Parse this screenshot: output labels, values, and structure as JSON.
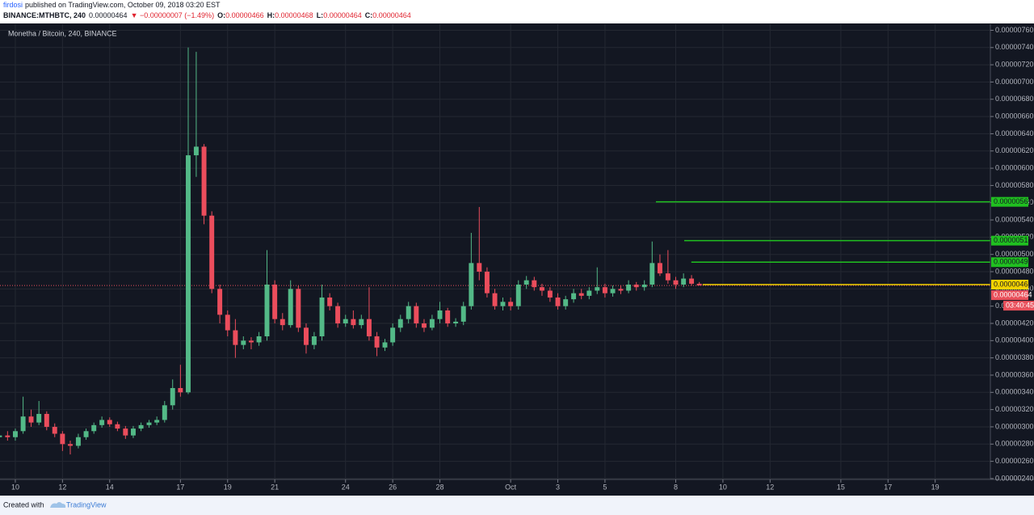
{
  "header": {
    "author": "firdosi",
    "published": "published on TradingView.com, October 09, 2018 03:20 EST",
    "symbol": "BINANCE:MTHBTC, 240",
    "price": "0.00000464",
    "change": "▼ −0.00000007 (−1.49%)",
    "ohlc": [
      {
        "label": "O:",
        "value": "0.00000466"
      },
      {
        "label": "H:",
        "value": "0.00000468"
      },
      {
        "label": "L:",
        "value": "0.00000464"
      },
      {
        "label": "C:",
        "value": "0.00000464"
      }
    ]
  },
  "footer": {
    "created": "Created with",
    "brand": "TradingView"
  },
  "chart_data": {
    "type": "candlestick",
    "title": "Monetha / Bitcoin, 240, BINANCE",
    "up_color": "#53b987",
    "down_color": "#eb4d5c",
    "grid": true,
    "xlim": [
      9.35,
      51.34
    ],
    "ylim": [
      2.39e-06,
      7.67e-06
    ],
    "xticks": [
      10,
      12,
      14,
      17,
      19,
      21,
      24,
      26,
      28,
      {
        "value": 31,
        "label": "Oct"
      },
      {
        "value": 33,
        "label": "3"
      },
      {
        "value": 35,
        "label": "5"
      },
      {
        "value": 38,
        "label": "8"
      },
      {
        "value": 40,
        "label": "10"
      },
      {
        "value": 42,
        "label": "12"
      },
      {
        "value": 45,
        "label": "15"
      },
      {
        "value": 47,
        "label": "17"
      },
      {
        "value": 49,
        "label": "19"
      }
    ],
    "yticks": [
      {
        "value": 2.4e-06,
        "label": "0.00000240"
      },
      {
        "value": 2.6e-06,
        "label": "0.00000260"
      },
      {
        "value": 2.8e-06,
        "label": "0.00000280"
      },
      {
        "value": 3e-06,
        "label": "0.00000300"
      },
      {
        "value": 3.2e-06,
        "label": "0.00000320"
      },
      {
        "value": 3.4e-06,
        "label": "0.00000340"
      },
      {
        "value": 3.6e-06,
        "label": "0.00000360"
      },
      {
        "value": 3.8e-06,
        "label": "0.00000380"
      },
      {
        "value": 4e-06,
        "label": "0.00000400"
      },
      {
        "value": 4.2e-06,
        "label": "0.00000420"
      },
      {
        "value": 4.4e-06,
        "label": "0.00000440"
      },
      {
        "value": 4.6e-06,
        "label": "0.00000460"
      },
      {
        "value": 4.8e-06,
        "label": "0.00000480"
      },
      {
        "value": 5e-06,
        "label": "0.00000500"
      },
      {
        "value": 5.2e-06,
        "label": "0.00000520"
      },
      {
        "value": 5.4e-06,
        "label": "0.00000540"
      },
      {
        "value": 5.6e-06,
        "label": "0.00000560"
      },
      {
        "value": 5.8e-06,
        "label": "0.00000580"
      },
      {
        "value": 6e-06,
        "label": "0.00000600"
      },
      {
        "value": 6.2e-06,
        "label": "0.00000620"
      },
      {
        "value": 6.4e-06,
        "label": "0.00000640"
      },
      {
        "value": 6.6e-06,
        "label": "0.00000660"
      },
      {
        "value": 6.8e-06,
        "label": "0.00000680"
      },
      {
        "value": 7e-06,
        "label": "0.00000700"
      },
      {
        "value": 7.2e-06,
        "label": "0.00000720"
      },
      {
        "value": 7.4e-06,
        "label": "0.00000740"
      },
      {
        "value": 7.6e-06,
        "label": "0.00000760"
      }
    ],
    "x": [
      9.33,
      9.67,
      10,
      10.33,
      10.67,
      11,
      11.33,
      11.67,
      12,
      12.33,
      12.67,
      13,
      13.33,
      13.67,
      14,
      14.33,
      14.67,
      15,
      15.33,
      15.67,
      16,
      16.33,
      16.67,
      17,
      17.33,
      17.67,
      18,
      18.33,
      18.67,
      19,
      19.33,
      19.67,
      20,
      20.33,
      20.67,
      21,
      21.33,
      21.67,
      22,
      22.33,
      22.67,
      23,
      23.33,
      23.67,
      24,
      24.33,
      24.67,
      25,
      25.33,
      25.67,
      26,
      26.33,
      26.67,
      27,
      27.33,
      27.67,
      28,
      28.33,
      28.67,
      29,
      29.33,
      29.67,
      30,
      30.33,
      30.67,
      31,
      31.33,
      31.67,
      32,
      32.33,
      32.67,
      33,
      33.33,
      33.67,
      34,
      34.33,
      34.67,
      35,
      35.33,
      35.67,
      36,
      36.33,
      36.67,
      37,
      37.33,
      37.67,
      38,
      38.33,
      38.67,
      39
    ],
    "open": [
      2.88e-06,
      2.9e-06,
      2.88e-06,
      2.95e-06,
      3.12e-06,
      3.05e-06,
      3.15e-06,
      3e-06,
      2.92e-06,
      2.8e-06,
      2.78e-06,
      2.88e-06,
      2.95e-06,
      3.02e-06,
      3.08e-06,
      3.03e-06,
      2.98e-06,
      2.9e-06,
      2.98e-06,
      3.02e-06,
      3.05e-06,
      3.08e-06,
      3.25e-06,
      3.45e-06,
      3.4e-06,
      6.15e-06,
      6.25e-06,
      5.45e-06,
      4.6e-06,
      4.3e-06,
      4.12e-06,
      3.95e-06,
      4e-06,
      3.98e-06,
      4.05e-06,
      4.65e-06,
      4.25e-06,
      4.18e-06,
      4.6e-06,
      4.15e-06,
      3.95e-06,
      4.05e-06,
      4.5e-06,
      4.4e-06,
      4.2e-06,
      4.25e-06,
      4.18e-06,
      4.25e-06,
      4.05e-06,
      3.92e-06,
      3.98e-06,
      4.15e-06,
      4.25e-06,
      4.4e-06,
      4.2e-06,
      4.15e-06,
      4.25e-06,
      4.35e-06,
      4.2e-06,
      4.22e-06,
      4.4e-06,
      4.9e-06,
      4.8e-06,
      4.55e-06,
      4.4e-06,
      4.45e-06,
      4.4e-06,
      4.65e-06,
      4.7e-06,
      4.62e-06,
      4.58e-06,
      4.5e-06,
      4.4e-06,
      4.48e-06,
      4.55e-06,
      4.52e-06,
      4.58e-06,
      4.62e-06,
      4.55e-06,
      4.6e-06,
      4.58e-06,
      4.65e-06,
      4.62e-06,
      4.65e-06,
      4.9e-06,
      4.78e-06,
      4.7e-06,
      4.65e-06,
      4.72e-06,
      4.66e-06
    ],
    "high": [
      2.93e-06,
      2.95e-06,
      2.98e-06,
      3.35e-06,
      3.2e-06,
      3.3e-06,
      3.18e-06,
      3.04e-06,
      2.95e-06,
      2.84e-06,
      2.92e-06,
      2.98e-06,
      3.05e-06,
      3.12e-06,
      3.11e-06,
      3.06e-06,
      3.01e-06,
      3.01e-06,
      3.05e-06,
      3.08e-06,
      3.12e-06,
      3.3e-06,
      3.55e-06,
      3.72e-06,
      7.4e-06,
      7.35e-06,
      6.28e-06,
      5.5e-06,
      4.65e-06,
      4.35e-06,
      4.25e-06,
      4.05e-06,
      4.04e-06,
      4.1e-06,
      5.05e-06,
      4.7e-06,
      4.32e-06,
      4.7e-06,
      4.64e-06,
      4.2e-06,
      4.1e-06,
      4.65e-06,
      4.55e-06,
      4.44e-06,
      4.3e-06,
      4.35e-06,
      4.3e-06,
      4.62e-06,
      4.1e-06,
      4.02e-06,
      4.2e-06,
      4.3e-06,
      4.45e-06,
      4.44e-06,
      4.25e-06,
      4.3e-06,
      4.45e-06,
      4.38e-06,
      4.26e-06,
      4.45e-06,
      5.25e-06,
      5.55e-06,
      4.85e-06,
      4.6e-06,
      4.5e-06,
      4.5e-06,
      4.7e-06,
      4.75e-06,
      4.74e-06,
      4.66e-06,
      4.62e-06,
      4.55e-06,
      4.52e-06,
      4.6e-06,
      4.6e-06,
      4.62e-06,
      4.85e-06,
      4.66e-06,
      4.64e-06,
      4.64e-06,
      4.7e-06,
      4.68e-06,
      4.7e-06,
      5.15e-06,
      5e-06,
      5.05e-06,
      4.74e-06,
      4.78e-06,
      4.76e-06,
      4.68e-06
    ],
    "low": [
      2.83e-06,
      2.84e-06,
      2.84e-06,
      2.92e-06,
      3e-06,
      3.02e-06,
      2.96e-06,
      2.88e-06,
      2.72e-06,
      2.68e-06,
      2.75e-06,
      2.85e-06,
      2.92e-06,
      2.99e-06,
      3e-06,
      2.95e-06,
      2.86e-06,
      2.87e-06,
      2.95e-06,
      2.99e-06,
      3.02e-06,
      3.05e-06,
      3.2e-06,
      3.35e-06,
      3.38e-06,
      5.9e-06,
      5.35e-06,
      4.55e-06,
      4.2e-06,
      4.05e-06,
      3.8e-06,
      3.9e-06,
      3.9e-06,
      3.94e-06,
      4e-06,
      4.2e-06,
      4.12e-06,
      4.15e-06,
      4.1e-06,
      3.85e-06,
      3.9e-06,
      4e-06,
      4.35e-06,
      4.15e-06,
      4.16e-06,
      4.14e-06,
      4.14e-06,
      4e-06,
      3.82e-06,
      3.88e-06,
      3.94e-06,
      4.1e-06,
      4.2e-06,
      4.15e-06,
      4.1e-06,
      4.12e-06,
      4.2e-06,
      4.16e-06,
      4.16e-06,
      4.18e-06,
      4.36e-06,
      4.7e-06,
      4.5e-06,
      4.36e-06,
      4.35e-06,
      4.35e-06,
      4.36e-06,
      4.6e-06,
      4.58e-06,
      4.52e-06,
      4.45e-06,
      4.36e-06,
      4.36e-06,
      4.44e-06,
      4.48e-06,
      4.48e-06,
      4.54e-06,
      4.5e-06,
      4.51e-06,
      4.54e-06,
      4.55e-06,
      4.58e-06,
      4.58e-06,
      4.62e-06,
      4.75e-06,
      4.66e-06,
      4.6e-06,
      4.62e-06,
      4.64e-06,
      4.64e-06
    ],
    "close": [
      2.9e-06,
      2.88e-06,
      2.95e-06,
      3.12e-06,
      3.05e-06,
      3.15e-06,
      3e-06,
      2.92e-06,
      2.8e-06,
      2.78e-06,
      2.88e-06,
      2.95e-06,
      3.02e-06,
      3.08e-06,
      3.03e-06,
      2.98e-06,
      2.9e-06,
      2.98e-06,
      3.02e-06,
      3.05e-06,
      3.08e-06,
      3.25e-06,
      3.45e-06,
      3.4e-06,
      6.15e-06,
      6.25e-06,
      5.45e-06,
      4.6e-06,
      4.3e-06,
      4.12e-06,
      3.95e-06,
      4e-06,
      3.98e-06,
      4.05e-06,
      4.65e-06,
      4.25e-06,
      4.18e-06,
      4.6e-06,
      4.15e-06,
      3.95e-06,
      4.05e-06,
      4.5e-06,
      4.4e-06,
      4.2e-06,
      4.25e-06,
      4.18e-06,
      4.25e-06,
      4.05e-06,
      3.92e-06,
      3.98e-06,
      4.15e-06,
      4.25e-06,
      4.4e-06,
      4.2e-06,
      4.15e-06,
      4.25e-06,
      4.35e-06,
      4.2e-06,
      4.22e-06,
      4.4e-06,
      4.9e-06,
      4.8e-06,
      4.55e-06,
      4.4e-06,
      4.45e-06,
      4.4e-06,
      4.65e-06,
      4.7e-06,
      4.62e-06,
      4.58e-06,
      4.5e-06,
      4.4e-06,
      4.48e-06,
      4.55e-06,
      4.52e-06,
      4.58e-06,
      4.62e-06,
      4.55e-06,
      4.6e-06,
      4.58e-06,
      4.65e-06,
      4.62e-06,
      4.65e-06,
      4.9e-06,
      4.78e-06,
      4.7e-06,
      4.65e-06,
      4.72e-06,
      4.66e-06,
      4.64e-06
    ],
    "levels": [
      {
        "value": 5.61e-06,
        "label": "0.00000561",
        "start": 37.16,
        "color": "#20c020"
      },
      {
        "value": 5.16e-06,
        "label": "0.00000516",
        "start": 38.36,
        "color": "#20c020"
      },
      {
        "value": 4.91e-06,
        "label": "0.00000491",
        "start": 38.66,
        "color": "#20c020"
      },
      {
        "value": 4.65e-06,
        "label": "0.00000465",
        "start": 39.14,
        "color": "#f5d300"
      }
    ],
    "last": {
      "value": 4.64e-06,
      "label": "0.00000464",
      "countdown": "03:40:45",
      "color": "#e8505b"
    }
  }
}
